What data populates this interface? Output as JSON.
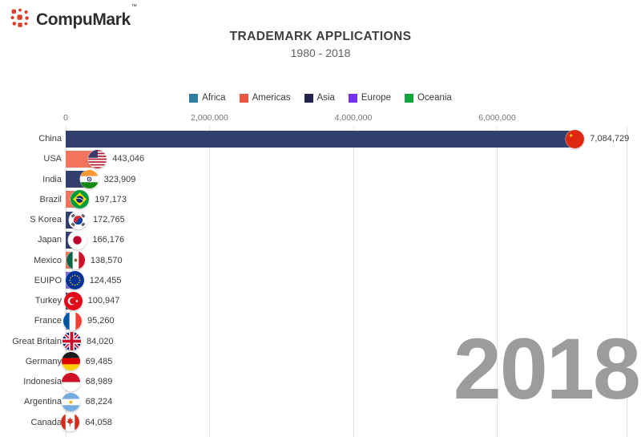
{
  "logo": {
    "text": "CompuMark",
    "tm": "TM"
  },
  "header": {
    "title": "TRADEMARK APPLICATIONS",
    "subtitle": "1980 - 2018"
  },
  "year_overlay": "2018",
  "legend": [
    "Africa",
    "Americas",
    "Asia",
    "Europe",
    "Oceania"
  ],
  "colors": {
    "legend": {
      "Africa": "#2e7f9e",
      "Americas": "#ee5540",
      "Asia": "#23234c",
      "Europe": "#7431f0",
      "Oceania": "#12a53e"
    },
    "bar": {
      "Africa": "#4b93ad",
      "Americas": "#f2745c",
      "Asia": "#32406d",
      "Europe": "#7c68dd",
      "Oceania": "#3db963"
    },
    "year_text": "#9c9c9c",
    "logo_dots": "#d8412c",
    "gridline": "#e3e3e3"
  },
  "chart_data": {
    "type": "bar",
    "orientation": "horizontal",
    "title": "TRADEMARK APPLICATIONS",
    "subtitle": "1980 - 2018",
    "year": "2018",
    "xlim": [
      0,
      7800000
    ],
    "grid": true,
    "legend_position": "top",
    "x_ticks": [
      {
        "label": "0",
        "value": 0
      },
      {
        "label": "2,000,000",
        "value": 2000000
      },
      {
        "label": "4,000,000",
        "value": 4000000
      },
      {
        "label": "6,000,000",
        "value": 6000000
      }
    ],
    "series": [
      {
        "country": "China",
        "value": 7084729,
        "value_label": "7,084,729",
        "continent": "Asia",
        "flag": "cn"
      },
      {
        "country": "USA",
        "value": 443046,
        "value_label": "443,046",
        "continent": "Americas",
        "flag": "us"
      },
      {
        "country": "India",
        "value": 323909,
        "value_label": "323,909",
        "continent": "Asia",
        "flag": "in"
      },
      {
        "country": "Brazil",
        "value": 197173,
        "value_label": "197,173",
        "continent": "Americas",
        "flag": "br"
      },
      {
        "country": "S Korea",
        "value": 172765,
        "value_label": "172,765",
        "continent": "Asia",
        "flag": "kr"
      },
      {
        "country": "Japan",
        "value": 166176,
        "value_label": "166,176",
        "continent": "Asia",
        "flag": "jp"
      },
      {
        "country": "Mexico",
        "value": 138570,
        "value_label": "138,570",
        "continent": "Americas",
        "flag": "mx"
      },
      {
        "country": "EUIPO",
        "value": 124455,
        "value_label": "124,455",
        "continent": "Europe",
        "flag": "eu"
      },
      {
        "country": "Turkey",
        "value": 100947,
        "value_label": "100,947",
        "continent": "Asia",
        "flag": "tr"
      },
      {
        "country": "France",
        "value": 95260,
        "value_label": "95,260",
        "continent": "Europe",
        "flag": "fr"
      },
      {
        "country": "Great Britain",
        "value": 84020,
        "value_label": "84,020",
        "continent": "Europe",
        "flag": "gb"
      },
      {
        "country": "Germany",
        "value": 69485,
        "value_label": "69,485",
        "continent": "Europe",
        "flag": "de"
      },
      {
        "country": "Indonesia",
        "value": 68989,
        "value_label": "68,989",
        "continent": "Asia",
        "flag": "id"
      },
      {
        "country": "Argentina",
        "value": 68224,
        "value_label": "68,224",
        "continent": "Americas",
        "flag": "ar"
      },
      {
        "country": "Canada",
        "value": 64058,
        "value_label": "64,058",
        "continent": "Americas",
        "flag": "ca"
      }
    ]
  }
}
